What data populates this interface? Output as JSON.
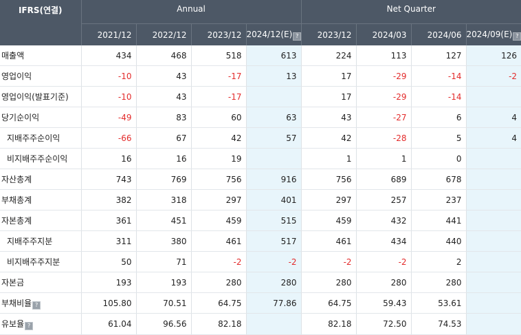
{
  "header": {
    "corner_label": "IFRS(연결)",
    "annual_label": "Annual",
    "quarter_label": "Net Quarter",
    "columns": [
      "2021/12",
      "2022/12",
      "2023/12",
      "2024/12(E)",
      "2023/12",
      "2024/03",
      "2024/06",
      "2024/09(E)"
    ]
  },
  "rows": [
    {
      "label": "매출액",
      "values": [
        "434",
        "468",
        "518",
        "613",
        "224",
        "113",
        "127",
        "126"
      ]
    },
    {
      "label": "영업이익",
      "values": [
        "-10",
        "43",
        "-17",
        "13",
        "17",
        "-29",
        "-14",
        "-2"
      ]
    },
    {
      "label": "영업이익(발표기준)",
      "values": [
        "-10",
        "43",
        "-17",
        "",
        "17",
        "-29",
        "-14",
        ""
      ]
    },
    {
      "label": "당기순이익",
      "values": [
        "-49",
        "83",
        "60",
        "63",
        "43",
        "-27",
        "6",
        "4"
      ]
    },
    {
      "label": "지배주주순이익",
      "values": [
        "-66",
        "67",
        "42",
        "57",
        "42",
        "-28",
        "5",
        "4"
      ]
    },
    {
      "label": "비지배주주순이익",
      "values": [
        "16",
        "16",
        "19",
        "",
        "1",
        "1",
        "0",
        ""
      ]
    },
    {
      "label": "자산총계",
      "values": [
        "743",
        "769",
        "756",
        "916",
        "756",
        "689",
        "678",
        ""
      ]
    },
    {
      "label": "부채총계",
      "values": [
        "382",
        "318",
        "297",
        "401",
        "297",
        "257",
        "237",
        ""
      ]
    },
    {
      "label": "자본총계",
      "values": [
        "361",
        "451",
        "459",
        "515",
        "459",
        "432",
        "441",
        ""
      ]
    },
    {
      "label": "지배주주지분",
      "values": [
        "311",
        "380",
        "461",
        "517",
        "461",
        "434",
        "440",
        ""
      ]
    },
    {
      "label": "비지배주주지분",
      "values": [
        "50",
        "71",
        "-2",
        "-2",
        "-2",
        "-2",
        "2",
        ""
      ]
    },
    {
      "label": "자본금",
      "values": [
        "193",
        "193",
        "280",
        "280",
        "280",
        "280",
        "280",
        ""
      ]
    },
    {
      "label": "부채비율",
      "values": [
        "105.80",
        "70.51",
        "64.75",
        "77.86",
        "64.75",
        "59.43",
        "53.61",
        ""
      ]
    },
    {
      "label": "유보율",
      "values": [
        "61.04",
        "96.56",
        "82.18",
        "",
        "82.18",
        "72.50",
        "74.53",
        ""
      ]
    }
  ],
  "colors": {
    "header_bg": "#4d5866",
    "negative": "#e32b2b",
    "estimate_bg": "#e8f5fb"
  }
}
